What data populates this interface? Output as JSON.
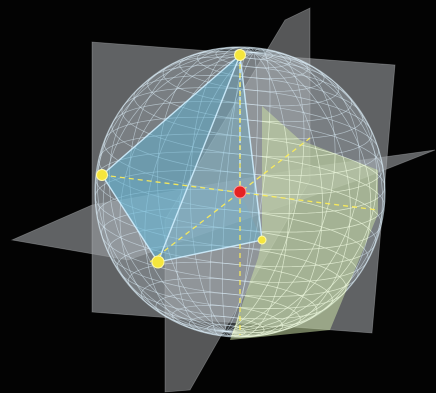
{
  "scene": {
    "background": "#030303",
    "sphere_fill": "#b9c9d2",
    "wire_color": "#dff1fb",
    "plane_color": "#9a9d9f",
    "pyramid_color": "#62b6d6",
    "highlight_fill": "#c9dca4",
    "axis_color": "#ffee55",
    "vertex_color": "#f5e63c",
    "center_color": "#e52222",
    "meridian_count": 24,
    "parallel_count": 24
  }
}
